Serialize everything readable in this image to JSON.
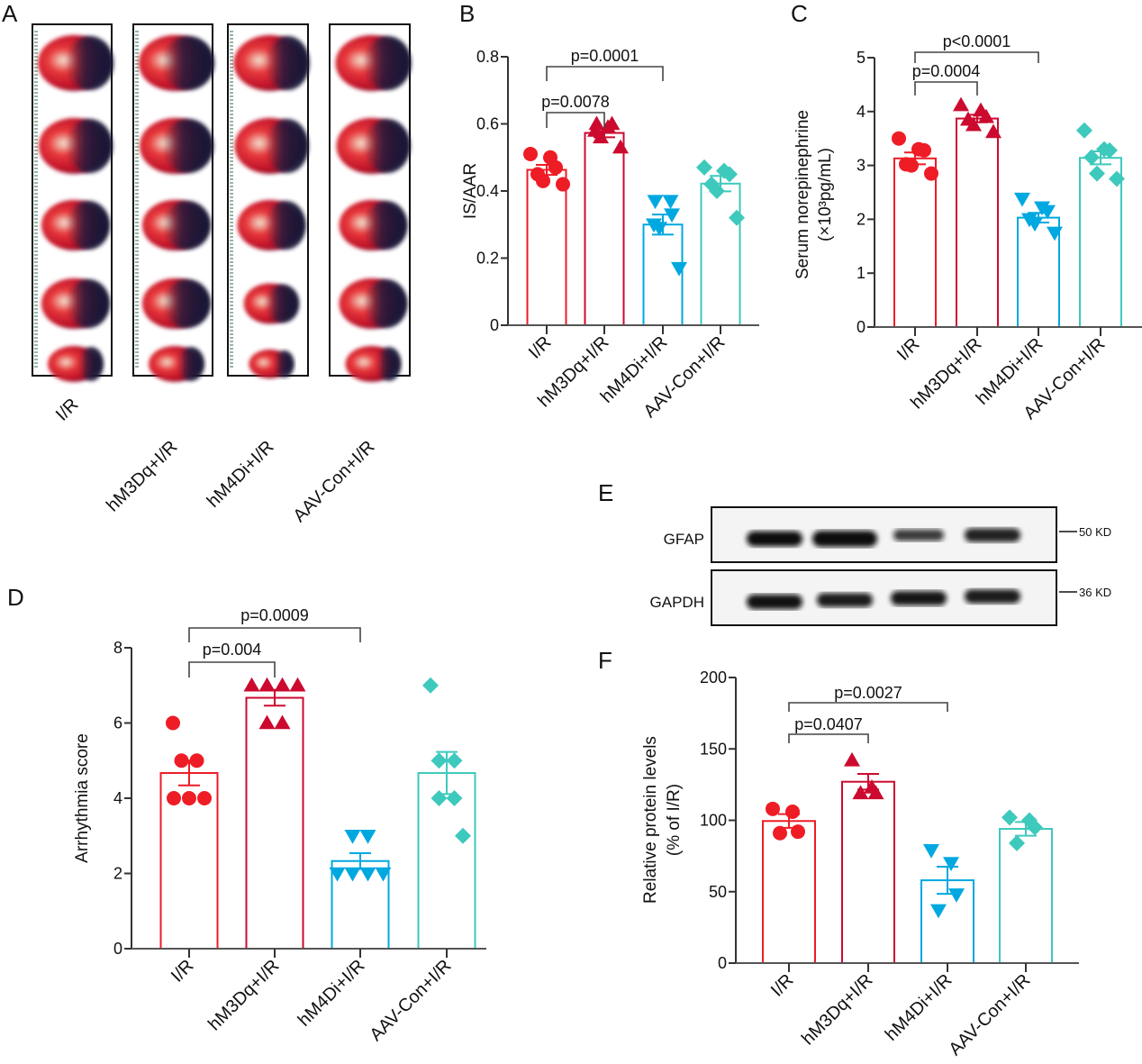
{
  "figure": {
    "panel_letters": [
      "A",
      "B",
      "C",
      "D",
      "E",
      "F"
    ],
    "groups": [
      "I/R",
      "hM3Dq+I/R",
      "hM4Di+I/R",
      "AAV-Con+I/R"
    ],
    "group_colors": [
      "#ee1c25",
      "#cc0a2f",
      "#00a8e0",
      "#3ec9bd"
    ],
    "group_markers": [
      "circle",
      "triangle-up",
      "triangle-down",
      "diamond"
    ]
  },
  "panel_a": {
    "letter": "A",
    "image_description": "TTC/Evans blue stained heart sections, 5 slices per group",
    "columns": [
      {
        "label": "I/R",
        "slices": 5
      },
      {
        "label": "hM3Dq+I/R",
        "slices": 5
      },
      {
        "label": "hM4Di+I/R",
        "slices": 5
      },
      {
        "label": "AAV-Con+I/R",
        "slices": 5
      }
    ]
  },
  "panel_e": {
    "letter": "E",
    "rows": [
      {
        "label": "GFAP",
        "marker": "50 KD",
        "band_intensity": [
          1.0,
          1.1,
          0.55,
          0.8
        ]
      },
      {
        "label": "GAPDH",
        "marker": "36 KD",
        "band_intensity": [
          0.95,
          0.85,
          0.9,
          0.85
        ]
      }
    ]
  },
  "chart_data": [
    {
      "id": "B",
      "type": "bar",
      "title": "",
      "panel_letter": "B",
      "categories": [
        "I/R",
        "hM3Dq+I/R",
        "hM4Di+I/R",
        "AAV-Con+I/R"
      ],
      "values": [
        0.463,
        0.573,
        0.3,
        0.422
      ],
      "sem": [
        0.015,
        0.013,
        0.03,
        0.023
      ],
      "points": [
        [
          0.51,
          0.5,
          0.47,
          0.45,
          0.43,
          0.42
        ],
        [
          0.6,
          0.59,
          0.6,
          0.58,
          0.56,
          0.53
        ],
        [
          0.37,
          0.37,
          0.33,
          0.3,
          0.29,
          0.17
        ],
        [
          0.47,
          0.46,
          0.45,
          0.42,
          0.4,
          0.32
        ]
      ],
      "xlabel": "",
      "ylabel": "IS/AAR",
      "ylabel_line2": "",
      "ylim": [
        0,
        0.8
      ],
      "yticks": [
        0,
        0.2,
        0.4,
        0.6,
        0.8
      ],
      "ytick_labels": [
        "0",
        "0.2",
        "0.4",
        "0.6",
        "0.8"
      ],
      "grid": false,
      "comparisons": [
        {
          "from": 0,
          "to": 1,
          "label": "p=0.0078"
        },
        {
          "from": 0,
          "to": 2,
          "label": "p=0.0001"
        }
      ]
    },
    {
      "id": "C",
      "type": "bar",
      "title": "",
      "panel_letter": "C",
      "categories": [
        "I/R",
        "hM3Dq+I/R",
        "hM4Di+I/R",
        "AAV-Con+I/R"
      ],
      "values": [
        3.13,
        3.87,
        2.03,
        3.14
      ],
      "sem": [
        0.11,
        0.07,
        0.09,
        0.12
      ],
      "points": [
        [
          3.5,
          3.3,
          3.28,
          3.02,
          3.0,
          2.85
        ],
        [
          4.12,
          4.02,
          3.9,
          3.85,
          3.75,
          3.62
        ],
        [
          2.38,
          2.22,
          2.15,
          2.0,
          1.92,
          1.75
        ],
        [
          3.65,
          3.3,
          3.28,
          3.15,
          2.85,
          2.75
        ]
      ],
      "xlabel": "",
      "ylabel": "Serum norepinephrine",
      "ylabel_line2": "(×10³pg/mL)",
      "ylim": [
        0,
        5
      ],
      "yticks": [
        0,
        1,
        2,
        3,
        4,
        5
      ],
      "ytick_labels": [
        "0",
        "1",
        "2",
        "3",
        "4",
        "5"
      ],
      "grid": false,
      "comparisons": [
        {
          "from": 0,
          "to": 1,
          "label": "p=0.0004"
        },
        {
          "from": 0,
          "to": 2,
          "label": "p<0.0001"
        }
      ]
    },
    {
      "id": "D",
      "type": "bar",
      "title": "",
      "panel_letter": "D",
      "categories": [
        "I/R",
        "hM3Dq+I/R",
        "hM4Di+I/R",
        "AAV-Con+I/R"
      ],
      "values": [
        4.67,
        6.67,
        2.33,
        4.67
      ],
      "sem": [
        0.33,
        0.21,
        0.21,
        0.56
      ],
      "points": [
        [
          6,
          5,
          5,
          4,
          4,
          4
        ],
        [
          7,
          7,
          7,
          7,
          6,
          6
        ],
        [
          3,
          3,
          2,
          2,
          2,
          2
        ],
        [
          7,
          5,
          5,
          4,
          4,
          3
        ]
      ],
      "xlabel": "",
      "ylabel": "Arrhythmia score",
      "ylabel_line2": "",
      "ylim": [
        0,
        8
      ],
      "yticks": [
        0,
        2,
        4,
        6,
        8
      ],
      "ytick_labels": [
        "0",
        "2",
        "4",
        "6",
        "8"
      ],
      "grid": false,
      "comparisons": [
        {
          "from": 0,
          "to": 1,
          "label": "p=0.004"
        },
        {
          "from": 0,
          "to": 2,
          "label": "p=0.0009"
        }
      ]
    },
    {
      "id": "F",
      "type": "bar",
      "title": "",
      "panel_letter": "F",
      "categories": [
        "I/R",
        "hM3Dq+I/R",
        "hM4Di+I/R",
        "AAV-Con+I/R"
      ],
      "values": [
        99.5,
        127,
        58,
        94
      ],
      "sem": [
        4.8,
        5.5,
        9.5,
        4.8
      ],
      "points": [
        [
          108,
          106,
          92,
          91
        ],
        [
          142,
          123,
          119,
          119
        ],
        [
          79,
          70,
          48,
          37
        ],
        [
          102,
          100,
          95,
          84
        ]
      ],
      "xlabel": "",
      "ylabel": "Relative protein levels",
      "ylabel_line2": "(% of I/R)",
      "ylim": [
        0,
        200
      ],
      "yticks": [
        0,
        50,
        100,
        150,
        200
      ],
      "ytick_labels": [
        "0",
        "50",
        "100",
        "150",
        "200"
      ],
      "grid": false,
      "comparisons": [
        {
          "from": 0,
          "to": 1,
          "label": "p=0.0407"
        },
        {
          "from": 0,
          "to": 2,
          "label": "p=0.0027"
        }
      ]
    }
  ]
}
